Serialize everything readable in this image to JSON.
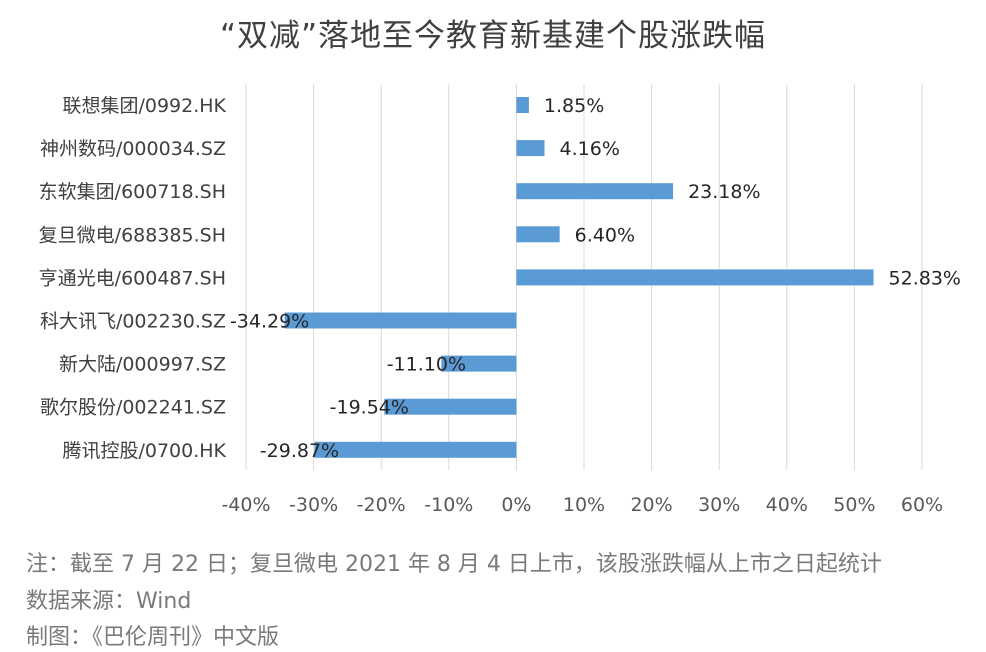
{
  "chart_data": {
    "type": "bar",
    "orientation": "horizontal",
    "title": "“双减”落地至今教育新基建个股涨跌幅",
    "categories": [
      "联想集团/0992.HK",
      "神州数码/000034.SZ",
      "东软集团/600718.SH",
      "复旦微电/688385.SH",
      "亨通光电/600487.SH",
      "科大讯飞/002230.SZ",
      "新大陆/000997.SZ",
      "歌尔股份/002241.SZ",
      "腾讯控股/0700.HK"
    ],
    "values": [
      1.85,
      4.16,
      23.18,
      6.4,
      52.83,
      -34.29,
      -11.1,
      -19.54,
      -29.87
    ],
    "value_labels": [
      "1.85%",
      "4.16%",
      "23.18%",
      "6.40%",
      "52.83%",
      "-34.29%",
      "-11.10%",
      "-19.54%",
      "-29.87%"
    ],
    "xlim": [
      -40,
      60
    ],
    "x_ticks": [
      -40,
      -30,
      -20,
      -10,
      0,
      10,
      20,
      30,
      40,
      50,
      60
    ],
    "x_tick_labels": [
      "-40%",
      "-30%",
      "-20%",
      "-10%",
      "0%",
      "10%",
      "20%",
      "30%",
      "40%",
      "50%",
      "60%"
    ],
    "xlabel": "",
    "ylabel": "",
    "grid": true,
    "legend": "none",
    "bar_color": "#5b9bd5"
  },
  "notes": {
    "line1": "注：截至 7 月 22 日；复旦微电 2021 年 8 月 4 日上市，该股涨跌幅从上市之日起统计",
    "line2": "数据来源：Wind",
    "line3": "制图：《巴伦周刊》中文版"
  }
}
